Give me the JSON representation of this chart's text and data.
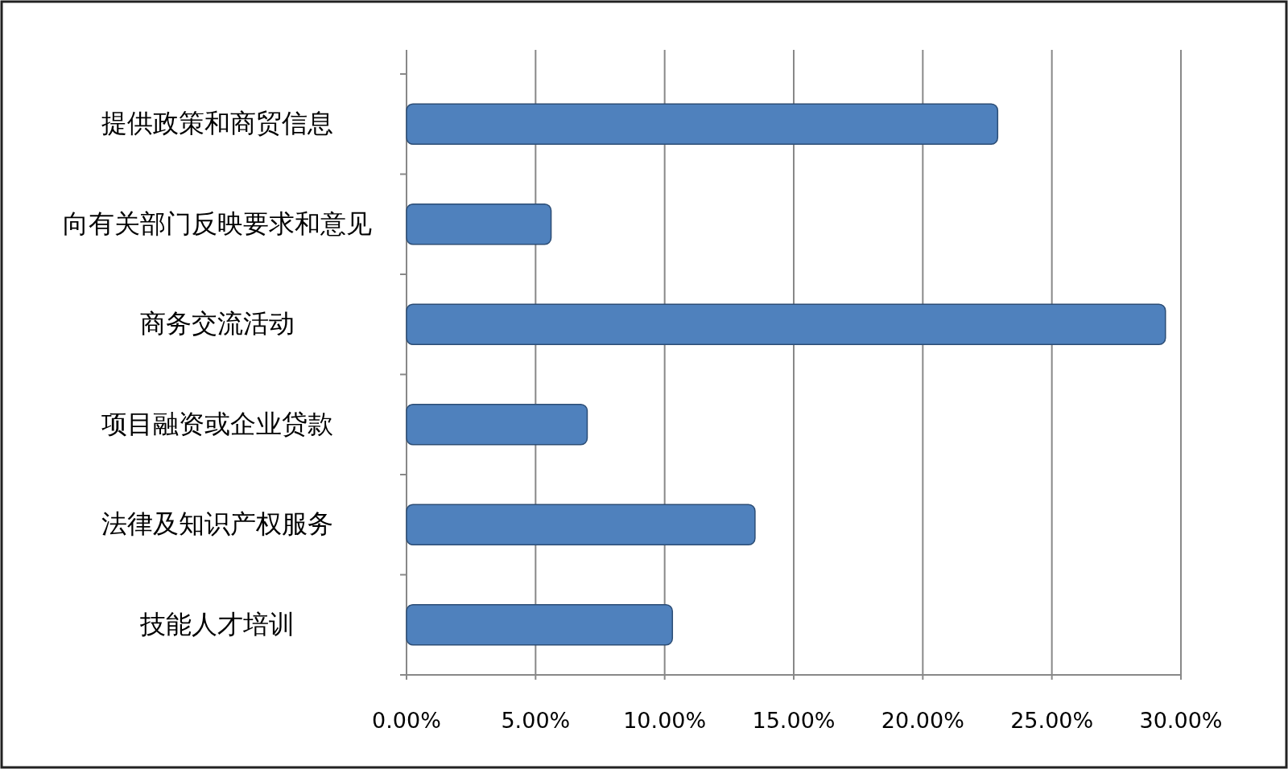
{
  "chart_data": {
    "type": "bar",
    "orientation": "horizontal",
    "categories": [
      "提供政策和商贸信息",
      "向有关部门反映要求和意见",
      "商务交流活动",
      "项目融资或企业贷款",
      "法律及知识产权服务",
      "技能人才培训"
    ],
    "values": [
      22.9,
      5.6,
      29.4,
      7.0,
      13.5,
      10.3
    ],
    "color": "#4f81bd",
    "xlim": [
      0,
      30
    ],
    "xticks": [
      {
        "value": 0,
        "label": "0.00%"
      },
      {
        "value": 5,
        "label": "5.00%"
      },
      {
        "value": 10,
        "label": "10.00%"
      },
      {
        "value": 15,
        "label": "15.00%"
      },
      {
        "value": 20,
        "label": "20.00%"
      },
      {
        "value": 25,
        "label": "25.00%"
      },
      {
        "value": 30,
        "label": "30.00%"
      }
    ],
    "grid": "x"
  }
}
